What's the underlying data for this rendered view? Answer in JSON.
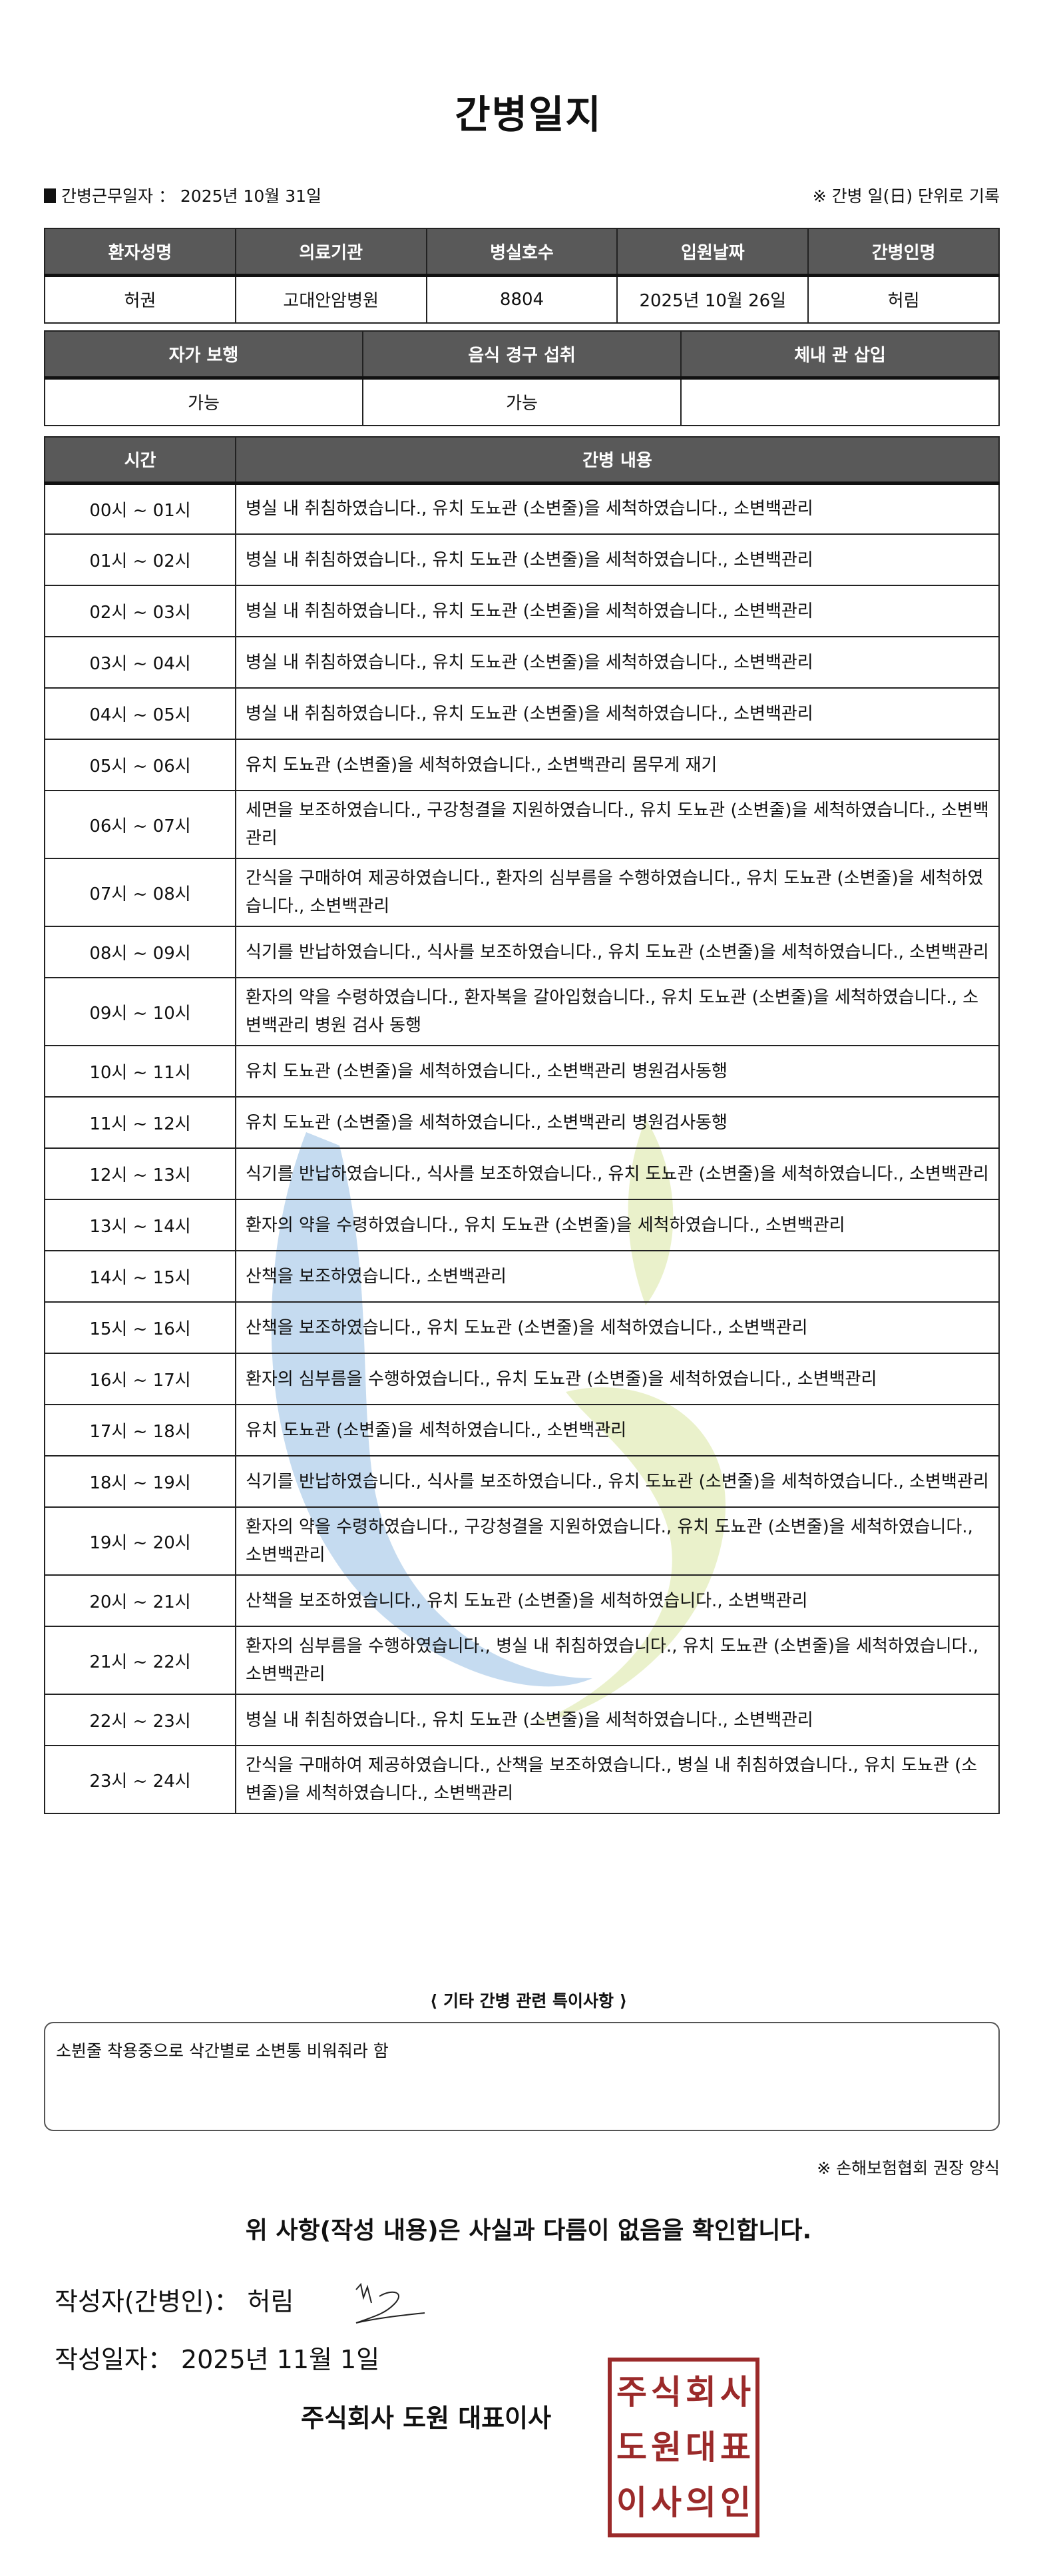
{
  "title": "간병일지",
  "work_date_label": "간병근무일자 ：  2025년 10월 31일",
  "daily_note": "※ 간병 일(日) 단위로 기록",
  "patient_table": {
    "headers": [
      "환자성명",
      "의료기관",
      "병실호수",
      "입원날짜",
      "간병인명"
    ],
    "values": [
      "허권",
      "고대안암병원",
      "8804",
      "2025년 10월 26일",
      "허림"
    ]
  },
  "status_table": {
    "headers": [
      "자가 보행",
      "음식 경구 섭취",
      "체내 관 삽입"
    ],
    "values": [
      "가능",
      "가능",
      ""
    ]
  },
  "care_table": {
    "headers": [
      "시간",
      "간병 내용"
    ],
    "rows": [
      {
        "time": "00시 ~ 01시",
        "content": "병실 내 취침하였습니다., 유치 도뇨관 (소변줄)을 세척하였습니다., 소변백관리"
      },
      {
        "time": "01시 ~ 02시",
        "content": "병실 내 취침하였습니다., 유치 도뇨관 (소변줄)을 세척하였습니다., 소변백관리"
      },
      {
        "time": "02시 ~ 03시",
        "content": "병실 내 취침하였습니다., 유치 도뇨관 (소변줄)을 세척하였습니다., 소변백관리"
      },
      {
        "time": "03시 ~ 04시",
        "content": "병실 내 취침하였습니다., 유치 도뇨관 (소변줄)을 세척하였습니다., 소변백관리"
      },
      {
        "time": "04시 ~ 05시",
        "content": "병실 내 취침하였습니다., 유치 도뇨관 (소변줄)을 세척하였습니다., 소변백관리"
      },
      {
        "time": "05시 ~ 06시",
        "content": "유치 도뇨관 (소변줄)을 세척하였습니다., 소변백관리 몸무게 재기"
      },
      {
        "time": "06시 ~ 07시",
        "content": "세면을 보조하였습니다., 구강청결을 지원하였습니다., 유치 도뇨관 (소변줄)을 세척하였습니다., 소변백관리"
      },
      {
        "time": "07시 ~ 08시",
        "content": "간식을 구매하여 제공하였습니다., 환자의 심부름을 수행하였습니다., 유치 도뇨관 (소변줄)을 세척하였습니다., 소변백관리"
      },
      {
        "time": "08시 ~ 09시",
        "content": "식기를 반납하였습니다., 식사를 보조하였습니다., 유치 도뇨관 (소변줄)을 세척하였습니다., 소변백관리"
      },
      {
        "time": "09시 ~ 10시",
        "content": "환자의 약을 수령하였습니다., 환자복을 갈아입혔습니다., 유치 도뇨관 (소변줄)을 세척하였습니다., 소변백관리 병원 검사 동행"
      },
      {
        "time": "10시 ~ 11시",
        "content": "유치 도뇨관 (소변줄)을 세척하였습니다., 소변백관리 병원검사동행"
      },
      {
        "time": "11시 ~ 12시",
        "content": "유치 도뇨관 (소변줄)을 세척하였습니다., 소변백관리 병원검사동행"
      },
      {
        "time": "12시 ~ 13시",
        "content": "식기를 반납하였습니다., 식사를 보조하였습니다., 유치 도뇨관 (소변줄)을 세척하였습니다., 소변백관리"
      },
      {
        "time": "13시 ~ 14시",
        "content": "환자의 약을 수령하였습니다., 유치 도뇨관 (소변줄)을 세척하였습니다., 소변백관리"
      },
      {
        "time": "14시 ~ 15시",
        "content": "산책을 보조하였습니다., 소변백관리"
      },
      {
        "time": "15시 ~ 16시",
        "content": "산책을 보조하였습니다., 유치 도뇨관 (소변줄)을 세척하였습니다., 소변백관리"
      },
      {
        "time": "16시 ~ 17시",
        "content": "환자의 심부름을 수행하였습니다., 유치 도뇨관 (소변줄)을 세척하였습니다., 소변백관리"
      },
      {
        "time": "17시 ~ 18시",
        "content": "유치 도뇨관 (소변줄)을 세척하였습니다., 소변백관리"
      },
      {
        "time": "18시 ~ 19시",
        "content": "식기를 반납하였습니다., 식사를 보조하였습니다., 유치 도뇨관 (소변줄)을 세척하였습니다., 소변백관리"
      },
      {
        "time": "19시 ~ 20시",
        "content": "환자의 약을 수령하였습니다., 구강청결을 지원하였습니다., 유치 도뇨관 (소변줄)을 세척하였습니다., 소변백관리"
      },
      {
        "time": "20시 ~ 21시",
        "content": "산책을 보조하였습니다., 유치 도뇨관 (소변줄)을 세척하였습니다., 소변백관리"
      },
      {
        "time": "21시 ~ 22시",
        "content": "환자의 심부름을 수행하였습니다., 병실 내 취침하였습니다., 유치 도뇨관 (소변줄)을 세척하였습니다., 소변백관리"
      },
      {
        "time": "22시 ~ 23시",
        "content": "병실 내 취침하였습니다., 유치 도뇨관 (소변줄)을 세척하였습니다., 소변백관리"
      },
      {
        "time": "23시 ~ 24시",
        "content": "간식을 구매하여 제공하였습니다., 산책을 보조하였습니다., 병실 내 취침하였습니다., 유치 도뇨관 (소변줄)을 세척하였습니다., 소변백관리"
      }
    ]
  },
  "memo": {
    "label": "⟨ 기타 간병 관련 특이사항 ⟩",
    "text": "소뷘줄 착용중으로 삭간별로 소변통 비워줘라 함"
  },
  "form_note": "※ 손해보험협회 권장 양식",
  "confirm_text": "위 사항(작성 내용)은 사실과 다름이 없음을 확인합니다.",
  "writer": "작성자(간병인)：  허림",
  "write_date": "작성일자：  2025년 11월 1일",
  "company": "주식회사 도원   대표이사",
  "stamp_text": [
    "주",
    "식",
    "회",
    "사",
    "도",
    "원",
    "대",
    "표",
    "이",
    "사",
    "의",
    "인"
  ],
  "colors": {
    "header_bg": "#595959",
    "stamp": "#9b2a2a",
    "watermark_blue": "#5b9bd5",
    "watermark_green": "#c5d86d"
  }
}
